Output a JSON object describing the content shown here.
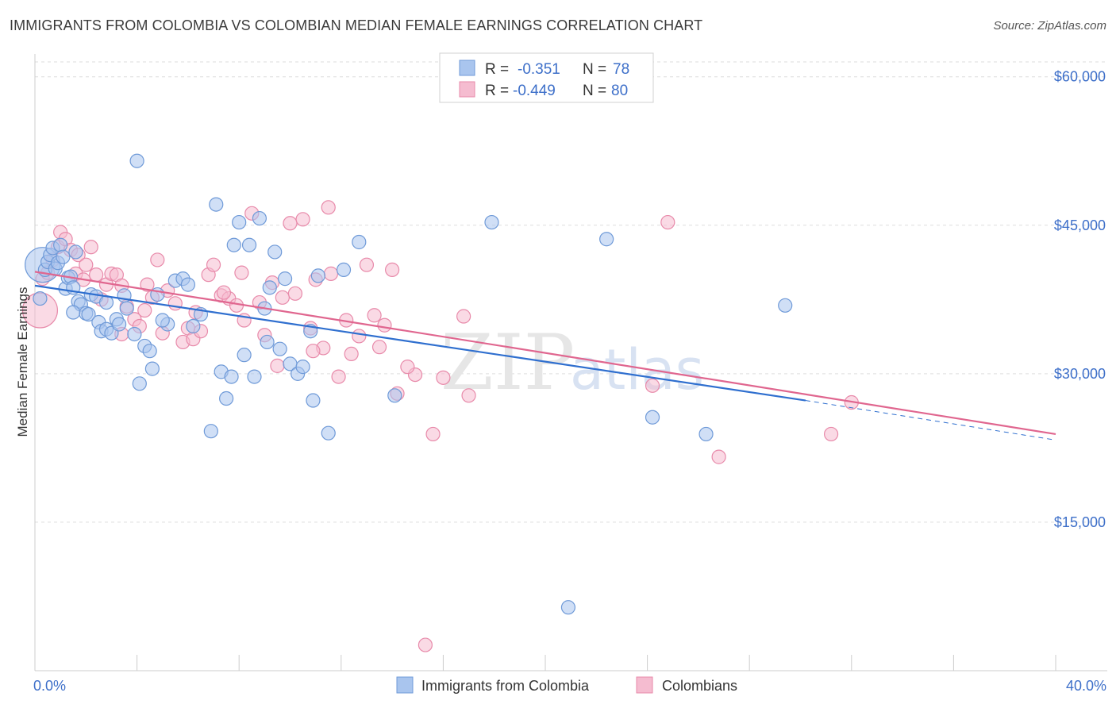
{
  "header": {
    "title": "IMMIGRANTS FROM COLOMBIA VS COLOMBIAN MEDIAN FEMALE EARNINGS CORRELATION CHART",
    "source": "Source: ZipAtlas.com"
  },
  "watermark": {
    "part1": "ZIP",
    "part2": "atlas"
  },
  "legend": {
    "r_label": "R =",
    "n_label": "N =",
    "items": [
      {
        "r": "-0.351",
        "n": "78"
      },
      {
        "r": "-0.449",
        "n": "80"
      }
    ]
  },
  "bottom_legend": {
    "items": [
      "Immigrants from Colombia",
      "Colombians"
    ]
  },
  "colors": {
    "series_blue_fill": "#a9c5ee",
    "series_blue_stroke": "#6f9ad8",
    "series_blue_line": "#2f6fcf",
    "series_pink_fill": "#f5bcd0",
    "series_pink_stroke": "#e88aaa",
    "series_pink_line": "#e0668f",
    "tick_color": "#3d6fc9",
    "grid": "#dddddd"
  },
  "chart_data": {
    "type": "scatter",
    "title": "IMMIGRANTS FROM COLOMBIA VS COLOMBIAN MEDIAN FEMALE EARNINGS CORRELATION CHART",
    "xlabel": "",
    "ylabel": "Median Female Earnings",
    "xlim": [
      0,
      40
    ],
    "ylim": [
      0,
      61500
    ],
    "x_tick_labels": [
      "0.0%",
      "40.0%"
    ],
    "y_ticks": [
      15000,
      30000,
      45000,
      60000
    ],
    "y_tick_labels": [
      "$15,000",
      "$30,000",
      "$45,000",
      "$60,000"
    ],
    "grid": true,
    "legend_placement": "top-center",
    "series": [
      {
        "name": "Immigrants from Colombia",
        "r": -0.351,
        "n": 78,
        "trend": {
          "x0": 0,
          "y0": 38900,
          "x1": 30.2,
          "y1": 27300,
          "dashed_to_x": 40,
          "dashed_to_y": 23300
        },
        "points": [
          [
            0.3,
            41000
          ],
          [
            0.4,
            40500
          ],
          [
            0.5,
            41300
          ],
          [
            0.6,
            42000
          ],
          [
            0.7,
            42700
          ],
          [
            0.8,
            40600
          ],
          [
            0.9,
            41200
          ],
          [
            1.0,
            43000
          ],
          [
            1.1,
            41800
          ],
          [
            1.2,
            38600
          ],
          [
            1.3,
            39700
          ],
          [
            1.4,
            39800
          ],
          [
            1.5,
            38700
          ],
          [
            1.6,
            42300
          ],
          [
            1.7,
            37300
          ],
          [
            1.8,
            37000
          ],
          [
            2.0,
            36100
          ],
          [
            2.1,
            36000
          ],
          [
            2.2,
            38000
          ],
          [
            2.4,
            37800
          ],
          [
            2.5,
            35200
          ],
          [
            2.6,
            34300
          ],
          [
            2.8,
            34500
          ],
          [
            3.0,
            34100
          ],
          [
            3.2,
            35500
          ],
          [
            3.3,
            35000
          ],
          [
            3.5,
            37900
          ],
          [
            3.6,
            36600
          ],
          [
            3.9,
            34000
          ],
          [
            4.0,
            51500
          ],
          [
            4.1,
            29000
          ],
          [
            4.3,
            32800
          ],
          [
            4.5,
            32300
          ],
          [
            4.6,
            30500
          ],
          [
            4.8,
            38000
          ],
          [
            5.2,
            35000
          ],
          [
            5.5,
            39400
          ],
          [
            5.8,
            39600
          ],
          [
            6.0,
            39000
          ],
          [
            6.2,
            34800
          ],
          [
            6.5,
            36000
          ],
          [
            6.9,
            24200
          ],
          [
            7.1,
            47100
          ],
          [
            7.3,
            30200
          ],
          [
            7.5,
            27500
          ],
          [
            7.7,
            29700
          ],
          [
            7.8,
            43000
          ],
          [
            8.0,
            45300
          ],
          [
            8.2,
            31900
          ],
          [
            8.4,
            43000
          ],
          [
            8.6,
            29700
          ],
          [
            8.8,
            45700
          ],
          [
            9.0,
            36600
          ],
          [
            9.2,
            38700
          ],
          [
            9.4,
            42300
          ],
          [
            9.6,
            32500
          ],
          [
            9.8,
            39600
          ],
          [
            10.0,
            31000
          ],
          [
            10.3,
            30000
          ],
          [
            10.5,
            30700
          ],
          [
            10.8,
            34300
          ],
          [
            10.9,
            27300
          ],
          [
            11.1,
            39900
          ],
          [
            11.5,
            24000
          ],
          [
            12.1,
            40500
          ],
          [
            12.7,
            43300
          ],
          [
            14.1,
            27800
          ],
          [
            17.9,
            45300
          ],
          [
            20.9,
            6400
          ],
          [
            22.4,
            43600
          ],
          [
            29.4,
            36900
          ],
          [
            24.2,
            25600
          ],
          [
            26.3,
            23900
          ],
          [
            0.2,
            37600
          ],
          [
            1.5,
            36200
          ],
          [
            2.8,
            37200
          ],
          [
            5.0,
            35400
          ],
          [
            9.1,
            33200
          ]
        ]
      },
      {
        "name": "Colombians",
        "r": -0.449,
        "n": 80,
        "trend": {
          "x0": 0,
          "y0": 40300,
          "x1": 40,
          "y1": 23900
        },
        "points": [
          [
            0.2,
            36400
          ],
          [
            0.3,
            39600
          ],
          [
            0.5,
            40200
          ],
          [
            0.7,
            41500
          ],
          [
            0.9,
            42800
          ],
          [
            1.0,
            44300
          ],
          [
            1.2,
            43600
          ],
          [
            1.4,
            42500
          ],
          [
            1.6,
            40100
          ],
          [
            1.7,
            42000
          ],
          [
            1.9,
            39500
          ],
          [
            2.0,
            41000
          ],
          [
            2.2,
            42800
          ],
          [
            2.4,
            40000
          ],
          [
            2.6,
            37500
          ],
          [
            2.8,
            39000
          ],
          [
            3.0,
            40100
          ],
          [
            3.2,
            40000
          ],
          [
            3.4,
            38900
          ],
          [
            3.6,
            36800
          ],
          [
            3.9,
            35500
          ],
          [
            4.1,
            34800
          ],
          [
            4.3,
            36400
          ],
          [
            4.6,
            37700
          ],
          [
            4.8,
            41500
          ],
          [
            5.0,
            34100
          ],
          [
            5.2,
            38400
          ],
          [
            5.5,
            37100
          ],
          [
            5.8,
            33200
          ],
          [
            6.0,
            34600
          ],
          [
            6.2,
            33500
          ],
          [
            6.5,
            34300
          ],
          [
            6.8,
            40000
          ],
          [
            7.0,
            41000
          ],
          [
            7.3,
            37900
          ],
          [
            7.6,
            37600
          ],
          [
            7.9,
            36900
          ],
          [
            8.2,
            35400
          ],
          [
            8.5,
            46200
          ],
          [
            8.8,
            37200
          ],
          [
            9.0,
            33900
          ],
          [
            9.3,
            39200
          ],
          [
            9.7,
            37700
          ],
          [
            10.0,
            45200
          ],
          [
            10.2,
            38100
          ],
          [
            10.5,
            45600
          ],
          [
            10.8,
            34600
          ],
          [
            11.0,
            39500
          ],
          [
            11.3,
            32600
          ],
          [
            11.5,
            46800
          ],
          [
            11.9,
            29700
          ],
          [
            12.4,
            32000
          ],
          [
            12.7,
            33800
          ],
          [
            13.0,
            41000
          ],
          [
            13.3,
            35900
          ],
          [
            13.5,
            32700
          ],
          [
            14.0,
            40500
          ],
          [
            14.2,
            28000
          ],
          [
            14.9,
            29900
          ],
          [
            15.6,
            23900
          ],
          [
            16.0,
            29600
          ],
          [
            16.8,
            35800
          ],
          [
            17.0,
            27800
          ],
          [
            24.2,
            28800
          ],
          [
            24.8,
            45300
          ],
          [
            26.8,
            21600
          ],
          [
            31.2,
            23900
          ],
          [
            32.0,
            27100
          ],
          [
            3.4,
            34000
          ],
          [
            6.3,
            36200
          ],
          [
            9.5,
            30800
          ],
          [
            11.6,
            40100
          ],
          [
            13.7,
            34900
          ],
          [
            7.4,
            38200
          ],
          [
            10.9,
            32300
          ],
          [
            14.6,
            30700
          ],
          [
            4.4,
            39000
          ],
          [
            12.2,
            35400
          ],
          [
            15.3,
            2600
          ],
          [
            8.1,
            40200
          ]
        ]
      }
    ]
  }
}
